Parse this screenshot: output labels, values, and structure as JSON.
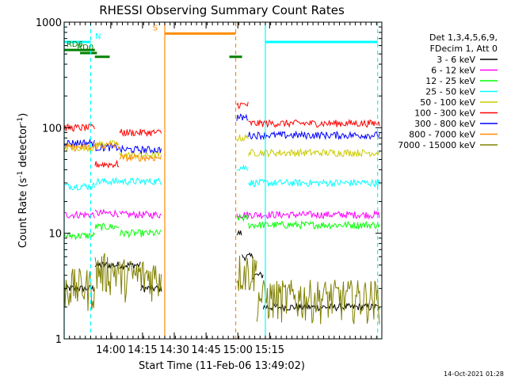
{
  "chart_data": {
    "type": "line",
    "title": "RHESSI Observing Summary Count Rates",
    "xlabel": "Start Time (11-Feb-06 13:49:02)",
    "ylabel_main": "Count Rate (s",
    "ylabel_sup1": "-1",
    "ylabel_mid": " detector",
    "ylabel_sup2": "-1",
    "ylabel_end": ")",
    "yscale": "log",
    "ylim": [
      1,
      1000
    ],
    "xlim_minutes": [
      -11,
      139
    ],
    "x_ticks": [
      {
        "label": "14:00",
        "minutes": 11
      },
      {
        "label": "14:15",
        "minutes": 26
      },
      {
        "label": "14:30",
        "minutes": 41
      },
      {
        "label": "14:45",
        "minutes": 56
      },
      {
        "label": "15:00",
        "minutes": 71
      },
      {
        "label": "15:15",
        "minutes": 86
      }
    ],
    "y_ticks": [
      {
        "label": "1",
        "value": 1
      },
      {
        "label": "10",
        "value": 10
      },
      {
        "label": "100",
        "value": 100
      },
      {
        "label": "1000",
        "value": 1000
      }
    ],
    "legend_header": [
      "Det 1,3,4,5,6,9,",
      "FDecim 1, Att 0"
    ],
    "series": [
      {
        "name": "3 - 6 keV",
        "color": "#000000",
        "segments": [
          {
            "x": [
              -11,
              3.5
            ],
            "level": 3.0
          },
          {
            "x": [
              3.6,
              15
            ],
            "level": 5.0
          },
          {
            "x": [
              15.1,
              25
            ],
            "level": 5.0
          },
          {
            "x": [
              25.1,
              35.2
            ],
            "level": 3.0
          },
          {
            "x": [
              70.5,
              73
            ],
            "level": 10.0
          },
          {
            "x": [
              73,
              78
            ],
            "level": 6.0
          },
          {
            "x": [
              78,
              83
            ],
            "level": 4.0
          },
          {
            "x": [
              83,
              138
            ],
            "level": 2.0
          }
        ]
      },
      {
        "name": "6 - 12 keV",
        "color": "#ff00ff",
        "segments": [
          {
            "x": [
              -11,
              3.5
            ],
            "level": 15.0
          },
          {
            "x": [
              3.6,
              15
            ],
            "level": 15.5
          },
          {
            "x": [
              15.1,
              35.2
            ],
            "level": 15.0
          },
          {
            "x": [
              70.5,
              138
            ],
            "level": 15.0
          }
        ]
      },
      {
        "name": "12 - 25 keV",
        "color": "#00ff00",
        "segments": [
          {
            "x": [
              -11,
              3.5
            ],
            "level": 9.5
          },
          {
            "x": [
              3.6,
              15
            ],
            "level": 11.5
          },
          {
            "x": [
              15.1,
              35.2
            ],
            "level": 10.0
          },
          {
            "x": [
              70.5,
              76
            ],
            "level": 14.0
          },
          {
            "x": [
              76,
              138
            ],
            "level": 12.0
          }
        ]
      },
      {
        "name": "25 - 50 keV",
        "color": "#00ffff",
        "segments": [
          {
            "x": [
              -11,
              3.5
            ],
            "level": 28.0
          },
          {
            "x": [
              3.6,
              15
            ],
            "level": 31.0
          },
          {
            "x": [
              15.1,
              35.2
            ],
            "level": 31.0
          },
          {
            "x": [
              70.5,
              76
            ],
            "level": 42.0
          },
          {
            "x": [
              76,
              138
            ],
            "level": 30.0
          }
        ]
      },
      {
        "name": "50 - 100 keV",
        "color": "#cccc00",
        "segments": [
          {
            "x": [
              -11,
              3.5
            ],
            "level": 65.0
          },
          {
            "x": [
              3.6,
              15
            ],
            "level": 70.0
          },
          {
            "x": [
              15.1,
              35.2
            ],
            "level": 55.0
          },
          {
            "x": [
              70.5,
              76
            ],
            "level": 80.0
          },
          {
            "x": [
              76,
              138
            ],
            "level": 58.0
          }
        ]
      },
      {
        "name": "100 - 300 keV",
        "color": "#ff0000",
        "segments": [
          {
            "x": [
              -11,
              3.5
            ],
            "level": 100.0
          },
          {
            "x": [
              3.6,
              15
            ],
            "level": 45.0
          },
          {
            "x": [
              15.1,
              35.2
            ],
            "level": 90.0
          },
          {
            "x": [
              70.5,
              76
            ],
            "level": 165.0
          },
          {
            "x": [
              76,
              138
            ],
            "level": 110.0
          }
        ]
      },
      {
        "name": "300 - 800 keV",
        "color": "#0000ff",
        "segments": [
          {
            "x": [
              -11,
              3.5
            ],
            "level": 72.0
          },
          {
            "x": [
              3.6,
              15
            ],
            "level": 65.0
          },
          {
            "x": [
              15.1,
              35.2
            ],
            "level": 62.0
          },
          {
            "x": [
              70.5,
              76
            ],
            "level": 125.0
          },
          {
            "x": [
              76,
              138
            ],
            "level": 85.0
          }
        ]
      },
      {
        "name": "800 - 7000 keV",
        "color": "#ff8c00",
        "segments": [
          {
            "x": [
              -11,
              3.5
            ],
            "level": 65.0
          },
          {
            "x": [
              3.6,
              15
            ],
            "level": 68.0
          },
          {
            "x": [
              15.1,
              35.2
            ],
            "level": 52.0
          }
        ]
      },
      {
        "name": "7000 - 15000 keV",
        "color": "#808000",
        "segments": [
          {
            "x": [
              -11,
              3.5
            ],
            "level": 3.2
          },
          {
            "x": [
              3.6,
              15
            ],
            "level": 4.5
          },
          {
            "x": [
              15.1,
              35.2
            ],
            "level": 4.0
          },
          {
            "x": [
              70.5,
              80
            ],
            "level": 4.5
          },
          {
            "x": [
              80,
              138
            ],
            "level": 2.5
          }
        ]
      }
    ],
    "vertical_lines": [
      {
        "minutes": -11,
        "color": "#00ffff",
        "style": "solid"
      },
      {
        "minutes": 1.5,
        "color": "#00ffff",
        "style": "dashed"
      },
      {
        "minutes": 36.5,
        "color": "#ff8c00",
        "style": "solid"
      },
      {
        "minutes": 70,
        "color": "#ff8c00",
        "style": "dashed"
      },
      {
        "minutes": 84,
        "color": "#00ffff",
        "style": "solid"
      },
      {
        "minutes": 137,
        "color": "#00ffff",
        "style": "dashed"
      }
    ],
    "flag_bars": [
      {
        "label": "N",
        "color": "#00ffff",
        "x": [
          -11,
          1.5
        ],
        "y": 650,
        "label_at": 5
      },
      {
        "label": "",
        "color": "#00ffff",
        "x": [
          84,
          137
        ],
        "y": 650,
        "label_at": 0
      },
      {
        "label": "S",
        "color": "#ff8c00",
        "x": [
          36.5,
          70
        ],
        "y": 780,
        "label_at": 32
      },
      {
        "label": "RD0",
        "color": "#008000",
        "x": [
          -3.5,
          4.5
        ],
        "y": 510,
        "label_at": -1
      },
      {
        "label": "RD6",
        "color": "#008000",
        "x": [
          -11,
          3.5
        ],
        "y": 545,
        "label_at": -6
      },
      {
        "label": "",
        "color": "#008000",
        "x": [
          3.5,
          10.5
        ],
        "y": 470,
        "label_at": 0
      },
      {
        "label": "",
        "color": "#008000",
        "x": [
          67,
          73
        ],
        "y": 470,
        "label_at": 0
      }
    ],
    "footer_date": "14-Oct-2021 01:28"
  }
}
